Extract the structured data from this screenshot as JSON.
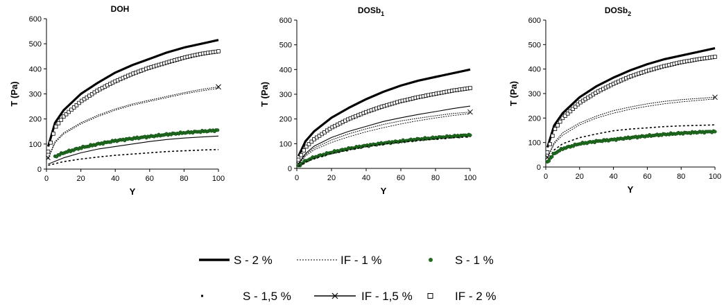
{
  "chart_data": [
    {
      "type": "line",
      "title": "DOH",
      "xlabel": "Y",
      "ylabel": "T (Pa)",
      "xlim": [
        0,
        100
      ],
      "ylim": [
        0,
        600
      ],
      "xticks": [
        0,
        20,
        40,
        60,
        80,
        100
      ],
      "yticks": [
        0,
        100,
        200,
        300,
        400,
        500,
        600
      ],
      "grid": false,
      "series": [
        {
          "name": "S - 2 %",
          "x": [
            1,
            5,
            10,
            20,
            30,
            40,
            50,
            60,
            70,
            80,
            90,
            100
          ],
          "y": [
            90,
            185,
            235,
            300,
            345,
            385,
            415,
            440,
            465,
            485,
            500,
            515
          ]
        },
        {
          "name": "IF - 2 %",
          "x": [
            1,
            5,
            10,
            20,
            30,
            40,
            50,
            60,
            70,
            80,
            90,
            100
          ],
          "y": [
            70,
            165,
            210,
            270,
            315,
            350,
            380,
            405,
            425,
            445,
            460,
            470
          ]
        },
        {
          "name": "IF - 1,5 %",
          "x": [
            1,
            5,
            10,
            20,
            30,
            40,
            50,
            60,
            70,
            80,
            90,
            100
          ],
          "y": [
            45,
            110,
            145,
            185,
            215,
            240,
            260,
            275,
            290,
            305,
            318,
            328
          ]
        },
        {
          "name": "IF - 1 %",
          "x": [
            1,
            5,
            10,
            20,
            30,
            40,
            50,
            60,
            70,
            80,
            90,
            100
          ],
          "y": [
            40,
            105,
            140,
            180,
            210,
            235,
            255,
            270,
            285,
            300,
            312,
            322
          ]
        },
        {
          "name": "S - 1 %",
          "x": [
            5,
            10,
            20,
            30,
            40,
            50,
            60,
            70,
            80,
            90,
            100
          ],
          "y": [
            50,
            65,
            85,
            100,
            113,
            122,
            130,
            138,
            145,
            150,
            155
          ]
        },
        {
          "name": "",
          "x": [
            1,
            10,
            20,
            30,
            40,
            50,
            60,
            70,
            80,
            90,
            100
          ],
          "y": [
            20,
            45,
            65,
            80,
            90,
            100,
            110,
            118,
            124,
            128,
            132
          ]
        },
        {
          "name": "S - 1,5 %",
          "x": [
            1,
            10,
            20,
            30,
            40,
            50,
            60,
            70,
            80,
            90,
            100
          ],
          "y": [
            15,
            30,
            40,
            48,
            55,
            60,
            65,
            70,
            73,
            76,
            78
          ]
        }
      ]
    },
    {
      "type": "line",
      "title": "DOSb",
      "title_sub": "1",
      "xlabel": "Y",
      "ylabel": "T (Pa)",
      "xlim": [
        0,
        100
      ],
      "ylim": [
        0,
        600
      ],
      "xticks": [
        0,
        20,
        40,
        60,
        80,
        100
      ],
      "yticks": [
        0,
        100,
        200,
        300,
        400,
        500,
        600
      ],
      "grid": false,
      "series": [
        {
          "name": "S - 2 %",
          "x": [
            1,
            5,
            10,
            20,
            30,
            40,
            50,
            60,
            70,
            80,
            90,
            100
          ],
          "y": [
            50,
            110,
            150,
            205,
            245,
            280,
            310,
            335,
            355,
            370,
            385,
            400
          ]
        },
        {
          "name": "IF - 2 %",
          "x": [
            1,
            5,
            10,
            20,
            30,
            40,
            50,
            60,
            70,
            80,
            90,
            100
          ],
          "y": [
            35,
            85,
            118,
            165,
            200,
            228,
            252,
            272,
            288,
            302,
            315,
            325
          ]
        },
        {
          "name": "",
          "x": [
            1,
            5,
            10,
            20,
            30,
            40,
            50,
            60,
            70,
            80,
            90,
            100
          ],
          "y": [
            20,
            60,
            90,
            125,
            150,
            170,
            190,
            205,
            218,
            230,
            242,
            252
          ]
        },
        {
          "name": "IF - 1,5 %",
          "x": [
            1,
            5,
            10,
            20,
            30,
            40,
            50,
            60,
            70,
            80,
            90,
            100
          ],
          "y": [
            18,
            55,
            82,
            115,
            140,
            160,
            178,
            192,
            203,
            213,
            222,
            228
          ]
        },
        {
          "name": "IF - 1 %",
          "x": [
            1,
            5,
            10,
            20,
            30,
            40,
            50,
            60,
            70,
            80,
            90,
            100
          ],
          "y": [
            15,
            50,
            75,
            105,
            128,
            148,
            165,
            180,
            193,
            204,
            214,
            222
          ]
        },
        {
          "name": "S - 1 %",
          "x": [
            1,
            5,
            10,
            20,
            30,
            40,
            50,
            60,
            70,
            80,
            90,
            100
          ],
          "y": [
            10,
            30,
            45,
            65,
            80,
            92,
            102,
            110,
            118,
            124,
            130,
            135
          ]
        },
        {
          "name": "S - 1,5 %",
          "x": [
            1,
            5,
            10,
            20,
            30,
            40,
            50,
            60,
            70,
            80,
            90,
            100
          ],
          "y": [
            8,
            25,
            40,
            60,
            75,
            88,
            98,
            106,
            113,
            119,
            124,
            128
          ]
        }
      ]
    },
    {
      "type": "line",
      "title": "DOSb",
      "title_sub": "2",
      "xlabel": "Y",
      "ylabel": "T (Pa)",
      "xlim": [
        0,
        100
      ],
      "ylim": [
        0,
        600
      ],
      "xticks": [
        0,
        20,
        40,
        60,
        80,
        100
      ],
      "yticks": [
        0,
        100,
        200,
        300,
        400,
        500,
        600
      ],
      "grid": false,
      "series": [
        {
          "name": "S - 2 %",
          "x": [
            1,
            5,
            10,
            20,
            30,
            40,
            50,
            60,
            70,
            80,
            90,
            100
          ],
          "y": [
            80,
            170,
            220,
            285,
            330,
            365,
            395,
            420,
            440,
            455,
            470,
            485
          ]
        },
        {
          "name": "IF - 2 %",
          "x": [
            1,
            5,
            10,
            20,
            30,
            40,
            50,
            60,
            70,
            80,
            90,
            100
          ],
          "y": [
            60,
            150,
            200,
            262,
            305,
            340,
            370,
            393,
            412,
            428,
            440,
            450
          ]
        },
        {
          "name": "IF - 1,5 %",
          "x": [
            1,
            5,
            10,
            20,
            30,
            40,
            50,
            60,
            70,
            80,
            90,
            100
          ],
          "y": [
            40,
            100,
            140,
            180,
            208,
            230,
            245,
            258,
            268,
            275,
            280,
            285
          ]
        },
        {
          "name": "IF - 1 %",
          "x": [
            1,
            5,
            10,
            20,
            30,
            40,
            50,
            60,
            70,
            80,
            90,
            100
          ],
          "y": [
            35,
            95,
            130,
            172,
            200,
            220,
            236,
            248,
            258,
            266,
            272,
            278
          ]
        },
        {
          "name": "S - 1,5 %",
          "x": [
            1,
            5,
            10,
            20,
            30,
            40,
            50,
            60,
            70,
            80,
            90,
            100
          ],
          "y": [
            25,
            70,
            95,
            120,
            135,
            148,
            155,
            160,
            165,
            168,
            170,
            172
          ]
        },
        {
          "name": "S - 1 %",
          "x": [
            1,
            5,
            10,
            20,
            30,
            40,
            50,
            60,
            70,
            80,
            90,
            100
          ],
          "y": [
            20,
            55,
            75,
            95,
            105,
            112,
            120,
            127,
            133,
            138,
            142,
            145
          ]
        }
      ]
    }
  ],
  "legend": [
    {
      "label": "S - 2 %",
      "symbol": "thick-line"
    },
    {
      "label": "IF - 1 %",
      "symbol": "dotted-line"
    },
    {
      "label": "S - 1 %",
      "symbol": "green-dot"
    },
    {
      "label": "S - 1,5 %",
      "symbol": "small-dot"
    },
    {
      "label": "IF - 1,5 %",
      "symbol": "line-with-x"
    },
    {
      "label": "IF - 2 %",
      "symbol": "open-square"
    }
  ],
  "colors": {
    "green": "#1f6e1f",
    "black": "#000000"
  }
}
